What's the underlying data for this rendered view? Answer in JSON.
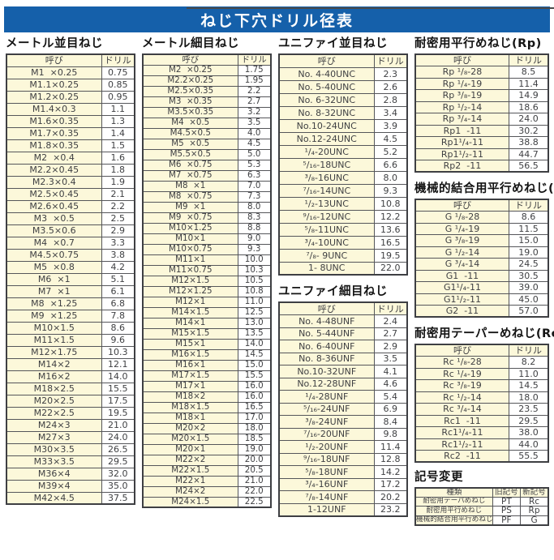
{
  "title": "ねじ下穴ドリル径表",
  "columns": {
    "name": "呼び",
    "drill": "ドリル"
  },
  "colors": {
    "title_bar_bg": "#1560aa",
    "title_text": "#ffffff",
    "cell_yellow": "#fcf8da",
    "cell_white": "#ffffff",
    "grid_border": "#55565a",
    "text": "#3f4043"
  },
  "sections": {
    "metric_coarse": {
      "title": "メートル並目ねじ",
      "rows": [
        [
          "M1  ×0.25",
          "0.75"
        ],
        [
          "M1.1×0.25",
          "0.85"
        ],
        [
          "M1.2×0.25",
          "0.95"
        ],
        [
          "M1.4×0.3",
          "1.1"
        ],
        [
          "M1.6×0.35",
          "1.3"
        ],
        [
          "M1.7×0.35",
          "1.4"
        ],
        [
          "M1.8×0.35",
          "1.5"
        ],
        [
          "M2  ×0.4",
          "1.6"
        ],
        [
          "M2.2×0.45",
          "1.8"
        ],
        [
          "M2.3×0.4",
          "1.9"
        ],
        [
          "M2.5×0.45",
          "2.1"
        ],
        [
          "M2.6×0.45",
          "2.2"
        ],
        [
          "M3  ×0.5",
          "2.5"
        ],
        [
          "M3.5×0.6",
          "2.9"
        ],
        [
          "M4  ×0.7",
          "3.3"
        ],
        [
          "M4.5×0.75",
          "3.8"
        ],
        [
          "M5  ×0.8",
          "4.2"
        ],
        [
          "M6  ×1",
          "5.1"
        ],
        [
          "M7  ×1",
          "6.1"
        ],
        [
          "M8  ×1.25",
          "6.8"
        ],
        [
          "M9  ×1.25",
          "7.8"
        ],
        [
          "M10×1.5",
          "8.6"
        ],
        [
          "M11×1.5",
          "9.6"
        ],
        [
          "M12×1.75",
          "10.3"
        ],
        [
          "M14×2",
          "12.1"
        ],
        [
          "M16×2",
          "14.0"
        ],
        [
          "M18×2.5",
          "15.5"
        ],
        [
          "M20×2.5",
          "17.5"
        ],
        [
          "M22×2.5",
          "19.5"
        ],
        [
          "M24×3",
          "21.0"
        ],
        [
          "M27×3",
          "24.0"
        ],
        [
          "M30×3.5",
          "26.5"
        ],
        [
          "M33×3.5",
          "29.5"
        ],
        [
          "M36×4",
          "32.0"
        ],
        [
          "M39×4",
          "35.0"
        ],
        [
          "M42×4.5",
          "37.5"
        ]
      ]
    },
    "metric_fine": {
      "title": "メートル細目ねじ",
      "rows": [
        [
          "M2  ×0.25",
          "1.75"
        ],
        [
          "M2.2×0.25",
          "1.95"
        ],
        [
          "M2.5×0.35",
          "2.2"
        ],
        [
          "M3  ×0.35",
          "2.7"
        ],
        [
          "M3.5×0.35",
          "3.2"
        ],
        [
          "M4  ×0.5",
          "3.5"
        ],
        [
          "M4.5×0.5",
          "4.0"
        ],
        [
          "M5  ×0.5",
          "4.5"
        ],
        [
          "M5.5×0.5",
          "5.0"
        ],
        [
          "M6  ×0.75",
          "5.3"
        ],
        [
          "M7  ×0.75",
          "6.3"
        ],
        [
          "M8  ×1",
          "7.0"
        ],
        [
          "M8  ×0.75",
          "7.3"
        ],
        [
          "M9  ×1",
          "8.0"
        ],
        [
          "M9  ×0.75",
          "8.3"
        ],
        [
          "M10×1.25",
          "8.8"
        ],
        [
          "M10×1",
          "9.0"
        ],
        [
          "M10×0.75",
          "9.3"
        ],
        [
          "M11×1",
          "10.0"
        ],
        [
          "M11×0.75",
          "10.3"
        ],
        [
          "M12×1.5",
          "10.5"
        ],
        [
          "M12×1.25",
          "10.8"
        ],
        [
          "M12×1",
          "11.0"
        ],
        [
          "M14×1.5",
          "12.5"
        ],
        [
          "M14×1",
          "13.0"
        ],
        [
          "M15×1.5",
          "13.5"
        ],
        [
          "M15×1",
          "14.0"
        ],
        [
          "M16×1.5",
          "14.5"
        ],
        [
          "M16×1",
          "15.0"
        ],
        [
          "M17×1.5",
          "15.5"
        ],
        [
          "M17×1",
          "16.0"
        ],
        [
          "M18×2",
          "16.0"
        ],
        [
          "M18×1.5",
          "16.5"
        ],
        [
          "M18×1",
          "17.0"
        ],
        [
          "M20×2",
          "18.0"
        ],
        [
          "M20×1.5",
          "18.5"
        ],
        [
          "M20×1",
          "19.0"
        ],
        [
          "M22×2",
          "20.0"
        ],
        [
          "M22×1.5",
          "20.5"
        ],
        [
          "M22×1",
          "21.0"
        ],
        [
          "M24×2",
          "22.0"
        ],
        [
          "M24×1.5",
          "22.5"
        ]
      ]
    },
    "unified_coarse": {
      "title": "ユニファイ並目ねじ",
      "rows": [
        [
          "No. 4-40UNC",
          "2.3"
        ],
        [
          "No. 5-40UNC",
          "2.6"
        ],
        [
          "No. 6-32UNC",
          "2.8"
        ],
        [
          "No. 8-32UNC",
          "3.4"
        ],
        [
          "No.10-24UNC",
          "3.9"
        ],
        [
          "No.12-24UNC",
          "4.5"
        ],
        [
          "¹/₄-20UNC",
          "5.2"
        ],
        [
          "⁵/₁₆-18UNC",
          "6.6"
        ],
        [
          "³/₈-16UNC",
          "8.0"
        ],
        [
          "⁷/₁₆-14UNC",
          "9.3"
        ],
        [
          "¹/₂-13UNC",
          "10.8"
        ],
        [
          "⁹/₁₆-12UNC",
          "12.2"
        ],
        [
          "⁵/₈-11UNC",
          "13.6"
        ],
        [
          "³/₄-10UNC",
          "16.5"
        ],
        [
          "⁷/₈- 9UNC",
          "19.5"
        ],
        [
          "1- 8UNC",
          "22.0"
        ]
      ]
    },
    "unified_fine": {
      "title": "ユニファイ細目ねじ",
      "rows": [
        [
          "No. 4-48UNF",
          "2.4"
        ],
        [
          "No. 5-44UNF",
          "2.7"
        ],
        [
          "No. 6-40UNF",
          "2.9"
        ],
        [
          "No. 8-36UNF",
          "3.5"
        ],
        [
          "No.10-32UNF",
          "4.1"
        ],
        [
          "No.12-28UNF",
          "4.6"
        ],
        [
          "¹/₄-28UNF",
          "5.4"
        ],
        [
          "⁵/₁₆-24UNF",
          "6.9"
        ],
        [
          "³/₈-24UNF",
          "8.4"
        ],
        [
          "⁷/₁₆-20UNF",
          "9.8"
        ],
        [
          "¹/₂-20UNF",
          "11.4"
        ],
        [
          "⁹/₁₆-18UNF",
          "12.8"
        ],
        [
          "⁵/₈-18UNF",
          "14.2"
        ],
        [
          "³/₄-16UNF",
          "17.2"
        ],
        [
          "⁷/₈-14UNF",
          "20.2"
        ],
        [
          "1-12UNF",
          "23.2"
        ]
      ]
    },
    "rp": {
      "title": "耐密用平行めねじ(Rp)",
      "rows": [
        [
          "Rp ¹/₈-28",
          "8.5"
        ],
        [
          "Rp ¹/₄-19",
          "11.4"
        ],
        [
          "Rp ³/₈-19",
          "14.9"
        ],
        [
          "Rp ¹/₂-14",
          "18.6"
        ],
        [
          "Rp ³/₄-14",
          "24.0"
        ],
        [
          "Rp1  -11",
          "30.2"
        ],
        [
          "Rp1¹/₄-11",
          "38.8"
        ],
        [
          "Rp1¹/₂-11",
          "44.7"
        ],
        [
          "Rp2  -11",
          "56.5"
        ]
      ]
    },
    "g": {
      "title": "機械的結合用平行めねじ(G)",
      "rows": [
        [
          "G ¹/₈-28",
          "8.6"
        ],
        [
          "G ¹/₄-19",
          "11.5"
        ],
        [
          "G ³/₈-19",
          "15.0"
        ],
        [
          "G ¹/₂-14",
          "19.0"
        ],
        [
          "G ³/₄-14",
          "24.5"
        ],
        [
          "G1  -11",
          "30.5"
        ],
        [
          "G1¹/₄-11",
          "39.0"
        ],
        [
          "G1¹/₂-11",
          "45.0"
        ],
        [
          "G2  -11",
          "57.0"
        ]
      ]
    },
    "rc": {
      "title": "耐密用テーパーめねじ(Rc)",
      "rows": [
        [
          "Rc ¹/₈-28",
          "8.2"
        ],
        [
          "Rc ¹/₄-19",
          "11.0"
        ],
        [
          "Rc ³/₈-19",
          "14.5"
        ],
        [
          "Rc ¹/₂-14",
          "18.0"
        ],
        [
          "Rc ³/₄-14",
          "23.5"
        ],
        [
          "Rc1  -11",
          "29.5"
        ],
        [
          "Rc1¹/₄-11",
          "38.0"
        ],
        [
          "Rc1¹/₂-11",
          "44.0"
        ],
        [
          "Rc2  -11",
          "55.5"
        ]
      ]
    }
  },
  "symbol_change": {
    "title": "記号変更",
    "headers": [
      "種類",
      "旧記号",
      "新記号"
    ],
    "rows": [
      [
        "耐密用テーパめねじ",
        "PT",
        "Rc"
      ],
      [
        "耐密用平行めねじ",
        "PS",
        "Rp"
      ],
      [
        "機械的結合用平行めねじ",
        "PF",
        "G"
      ]
    ]
  }
}
